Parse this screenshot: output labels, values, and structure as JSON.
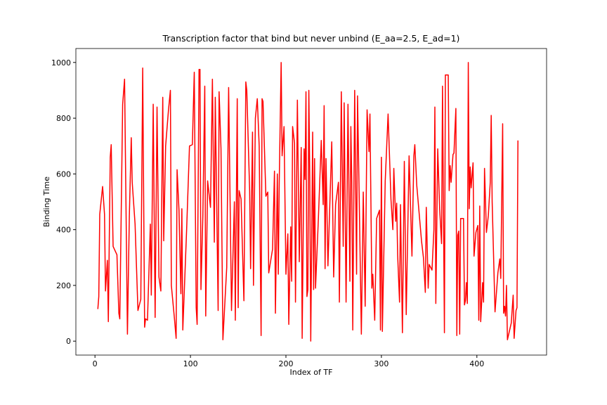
{
  "chart_data": {
    "type": "line",
    "title": "Transcription factor that bind but never unbind (E_aa=2.5, E_ad=1)",
    "x_label": "Index of TF",
    "y_label": "Binding Time",
    "xlim": [
      -20,
      473
    ],
    "ylim": [
      -50,
      1050
    ],
    "xticks": [
      0,
      100,
      200,
      300,
      400
    ],
    "yticks": [
      0,
      200,
      400,
      600,
      800,
      1000
    ],
    "grid": false,
    "series": [
      {
        "color": "#ff0000",
        "x": [
          3,
          4,
          5,
          8,
          10,
          11,
          13,
          14,
          16,
          17,
          19,
          23,
          25,
          26,
          29,
          31,
          34,
          36,
          38,
          39,
          42,
          45,
          48,
          50,
          52,
          53,
          55,
          58,
          59,
          61,
          63,
          65,
          67,
          69,
          71,
          72,
          74,
          77,
          79,
          80,
          83,
          85,
          86,
          88,
          90,
          91,
          92,
          96,
          99,
          102,
          104,
          106,
          107,
          109,
          110,
          111,
          113,
          115,
          116,
          118,
          121,
          123,
          125,
          126,
          129,
          130,
          132,
          134,
          138,
          140,
          143,
          146,
          147,
          149,
          150,
          151,
          153,
          156,
          158,
          159,
          162,
          163,
          165,
          166,
          168,
          170,
          172,
          174,
          175,
          176,
          179,
          181,
          182,
          186,
          188,
          189,
          191,
          192,
          193,
          195,
          196,
          198,
          200,
          202,
          203,
          205,
          206,
          207,
          209,
          210,
          212,
          214,
          216,
          217,
          219,
          220,
          221,
          222,
          223,
          224,
          225,
          226,
          228,
          229,
          230,
          231,
          234,
          237,
          239,
          240,
          241,
          242,
          244,
          248,
          250,
          252,
          255,
          256,
          258,
          260,
          261,
          263,
          265,
          267,
          268,
          269,
          270,
          272,
          274,
          275,
          277,
          279,
          281,
          283,
          285,
          287,
          288,
          290,
          291,
          293,
          295,
          298,
          299,
          300,
          301,
          304,
          307,
          310,
          312,
          313,
          315,
          316,
          317,
          319,
          320,
          322,
          324,
          326,
          329,
          332,
          334,
          335,
          337,
          342,
          344,
          346,
          347,
          349,
          350,
          353,
          355,
          356,
          357,
          359,
          361,
          363,
          364,
          366,
          367,
          370,
          371,
          372,
          373,
          375,
          376,
          378,
          379,
          380,
          381,
          382,
          383,
          386,
          387,
          388,
          389,
          390,
          391,
          392,
          393,
          394,
          396,
          397,
          399,
          401,
          402,
          403,
          404,
          406,
          407,
          408,
          410,
          412,
          414,
          415,
          416,
          419,
          422,
          424,
          425,
          427,
          428,
          429,
          430,
          431,
          432,
          436,
          438,
          439,
          440,
          441,
          442,
          443
        ],
        "values": [
          115,
          160,
          455,
          555,
          455,
          180,
          290,
          70,
          660,
          705,
          340,
          310,
          100,
          80,
          850,
          940,
          25,
          450,
          730,
          570,
          420,
          110,
          150,
          980,
          50,
          80,
          75,
          420,
          165,
          850,
          85,
          840,
          230,
          180,
          875,
          360,
          700,
          830,
          900,
          200,
          90,
          10,
          615,
          470,
          170,
          475,
          40,
          400,
          700,
          705,
          965,
          120,
          60,
          975,
          975,
          185,
          450,
          915,
          90,
          575,
          480,
          940,
          355,
          875,
          110,
          895,
          690,
          5,
          265,
          910,
          110,
          500,
          75,
          870,
          120,
          540,
          510,
          145,
          930,
          900,
          540,
          260,
          750,
          200,
          800,
          870,
          700,
          20,
          870,
          860,
          520,
          535,
          245,
          330,
          610,
          100,
          600,
          240,
          570,
          1000,
          665,
          770,
          240,
          385,
          60,
          410,
          215,
          770,
          710,
          140,
          865,
          285,
          695,
          10,
          690,
          580,
          895,
          160,
          185,
          900,
          580,
          0,
          750,
          185,
          655,
          190,
          440,
          720,
          490,
          845,
          260,
          655,
          270,
          715,
          230,
          490,
          570,
          140,
          895,
          340,
          855,
          140,
          850,
          215,
          770,
          570,
          40,
          900,
          240,
          880,
          460,
          25,
          535,
          125,
          830,
          680,
          815,
          190,
          240,
          75,
          440,
          470,
          40,
          660,
          35,
          575,
          815,
          510,
          400,
          620,
          430,
          495,
          310,
          140,
          490,
          30,
          645,
          95,
          665,
          305,
          665,
          705,
          560,
          360,
          300,
          175,
          480,
          190,
          275,
          255,
          400,
          840,
          135,
          690,
          475,
          350,
          915,
          30,
          955,
          955,
          540,
          630,
          570,
          670,
          675,
          835,
          20,
          380,
          395,
          25,
          440,
          440,
          130,
          145,
          210,
          135,
          1000,
          475,
          625,
          550,
          640,
          305,
          390,
          415,
          75,
          485,
          70,
          210,
          140,
          620,
          390,
          450,
          570,
          810,
          500,
          105,
          245,
          295,
          225,
          780,
          100,
          125,
          90,
          200,
          5,
          65,
          165,
          10,
          60,
          110,
          120,
          720
        ]
      }
    ]
  }
}
